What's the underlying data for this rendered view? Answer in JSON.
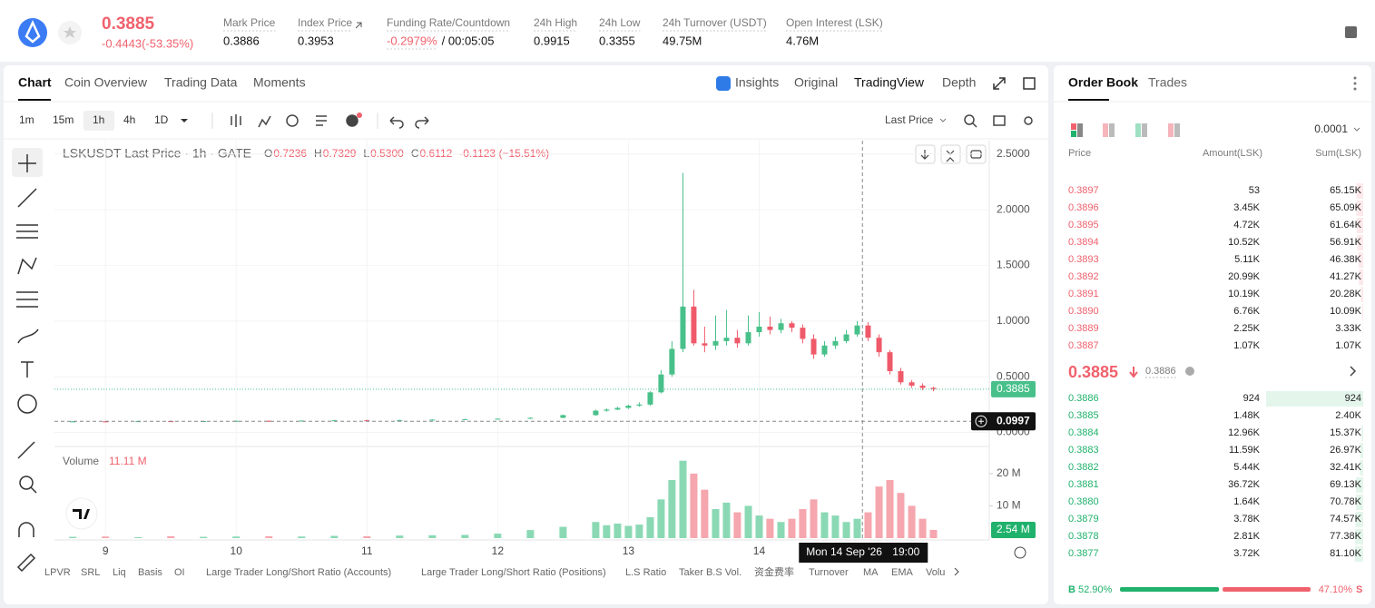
{
  "header": {
    "price": "0.3885",
    "change": "-0.4443(-53.35%)",
    "stats": [
      {
        "label": "Mark Price",
        "value": "0.3886"
      },
      {
        "label": "Index Price",
        "value": "0.3953"
      },
      {
        "label": "Funding Rate/Countdown",
        "value": "-0.2979%",
        "countdown": "/ 00:05:05"
      },
      {
        "label": "24h High",
        "value": "0.9915"
      },
      {
        "label": "24h Low",
        "value": "0.3355"
      },
      {
        "label": "24h Turnover (USDT)",
        "value": "49.75M"
      },
      {
        "label": "Open Interest (LSK)",
        "value": "4.76M"
      }
    ]
  },
  "tabs": [
    "Chart",
    "Coin Overview",
    "Trading Data",
    "Moments"
  ],
  "view_tabs": [
    "Insights",
    "Original",
    "TradingView",
    "Depth"
  ],
  "intervals": [
    "1m",
    "15m",
    "1h",
    "4h",
    "1D"
  ],
  "price_type": "Last Price",
  "chart_data": {
    "type": "candlestick",
    "title": "LSKUSDT Last Price · 1h · GATE",
    "legend": [
      {
        "label": "O",
        "value": "0.7236"
      },
      {
        "label": "H",
        "value": "0.7329"
      },
      {
        "label": "L",
        "value": "0.5300"
      },
      {
        "label": "C",
        "value": "0.6112"
      }
    ],
    "legend_change": "-0.1123 (−15.51%)",
    "x": [
      8.75,
      9,
      9.25,
      9.5,
      9.75,
      10,
      10.25,
      10.5,
      10.75,
      11,
      11.25,
      11.5,
      11.75,
      12,
      12.25,
      12.5,
      12.75,
      12.833,
      12.917,
      13,
      13.083,
      13.167,
      13.25,
      13.333,
      13.417,
      13.5,
      13.583,
      13.667,
      13.75,
      13.833,
      13.917,
      14,
      14.083,
      14.167,
      14.25,
      14.333,
      14.417,
      14.5,
      14.583,
      14.667,
      14.75,
      14.833,
      14.917,
      15,
      15.083,
      15.167,
      15.25,
      15.333
    ],
    "open": [
      0.097,
      0.099,
      0.098,
      0.101,
      0.1,
      0.102,
      0.104,
      0.103,
      0.106,
      0.109,
      0.107,
      0.111,
      0.115,
      0.119,
      0.123,
      0.131,
      0.155,
      0.195,
      0.205,
      0.22,
      0.24,
      0.25,
      0.36,
      0.52,
      0.75,
      1.13,
      0.8,
      0.78,
      0.82,
      0.85,
      0.8,
      0.9,
      0.95,
      0.92,
      0.98,
      0.94,
      0.84,
      0.7,
      0.78,
      0.82,
      0.88,
      0.96,
      0.85,
      0.72,
      0.55,
      0.45,
      0.42,
      0.4
    ],
    "high": [
      0.102,
      0.104,
      0.103,
      0.106,
      0.104,
      0.107,
      0.108,
      0.109,
      0.112,
      0.114,
      0.113,
      0.118,
      0.121,
      0.126,
      0.135,
      0.16,
      0.205,
      0.215,
      0.23,
      0.25,
      0.27,
      0.37,
      0.56,
      0.82,
      2.33,
      1.28,
      0.95,
      1.05,
      1.1,
      0.92,
      1.05,
      1.08,
      1.04,
      1.02,
      1.0,
      0.97,
      0.88,
      0.82,
      0.86,
      0.92,
      1.0,
      0.99,
      0.88,
      0.74,
      0.58,
      0.47,
      0.44,
      0.41
    ],
    "low": [
      0.094,
      0.095,
      0.096,
      0.098,
      0.097,
      0.099,
      0.1,
      0.101,
      0.103,
      0.105,
      0.104,
      0.108,
      0.111,
      0.115,
      0.12,
      0.128,
      0.15,
      0.185,
      0.2,
      0.21,
      0.23,
      0.24,
      0.35,
      0.5,
      0.72,
      0.78,
      0.72,
      0.74,
      0.78,
      0.76,
      0.78,
      0.86,
      0.88,
      0.89,
      0.9,
      0.8,
      0.66,
      0.68,
      0.75,
      0.8,
      0.86,
      0.82,
      0.68,
      0.52,
      0.43,
      0.4,
      0.38,
      0.37
    ],
    "close": [
      0.099,
      0.098,
      0.101,
      0.1,
      0.102,
      0.104,
      0.103,
      0.106,
      0.109,
      0.107,
      0.111,
      0.115,
      0.119,
      0.123,
      0.131,
      0.155,
      0.195,
      0.205,
      0.22,
      0.24,
      0.25,
      0.36,
      0.52,
      0.75,
      1.13,
      0.8,
      0.78,
      0.82,
      0.85,
      0.8,
      0.9,
      0.95,
      0.92,
      0.98,
      0.94,
      0.84,
      0.7,
      0.78,
      0.82,
      0.88,
      0.96,
      0.85,
      0.72,
      0.55,
      0.45,
      0.42,
      0.4,
      0.3885
    ],
    "volume": [
      0.4,
      0.5,
      0.3,
      0.6,
      0.4,
      0.5,
      0.6,
      0.5,
      0.7,
      0.6,
      0.8,
      0.9,
      1.0,
      1.4,
      2.5,
      3.5,
      5.0,
      4.0,
      4.5,
      3.8,
      4.2,
      6.5,
      12,
      18,
      24,
      20,
      15,
      9,
      11,
      8,
      10,
      7,
      6,
      5,
      6,
      9,
      12,
      8,
      7,
      5,
      6,
      8,
      16,
      18,
      14,
      10,
      6,
      2.54
    ],
    "up_color": "#48c08a",
    "down_color": "#ef5a6a",
    "vol_up_color": "#8ad9b4",
    "vol_down_color": "#f5a6ae",
    "xlim": [
      8.61,
      15.76
    ],
    "xticks": [
      9,
      10,
      11,
      12,
      13,
      14
    ],
    "ylim": [
      -0.11,
      2.62
    ],
    "yticks": [
      {
        "value": 0,
        "label": "0.0000"
      },
      {
        "value": 0.5,
        "label": "0.5000"
      },
      {
        "value": 1,
        "label": "1.0000"
      },
      {
        "value": 1.5,
        "label": "1.5000"
      },
      {
        "value": 2,
        "label": "2.0000"
      },
      {
        "value": 2.5,
        "label": "2.5000"
      }
    ],
    "volume_title": "Volume",
    "volume_value": "11.11 M",
    "volume_ylim": [
      0,
      27
    ],
    "volume_ticks": [
      {
        "value": 10,
        "label": "10 M"
      },
      {
        "value": 20,
        "label": "20 M"
      }
    ],
    "last_price": {
      "value": 0.3885,
      "label": "0.3885"
    },
    "last_volume": {
      "value": 2.54,
      "label": "2.54 M"
    },
    "crosshair": {
      "x": 14.79,
      "y": 0.0997,
      "y_label": "0.0997",
      "date_label": "Mon 14 Sep '26",
      "time_label": "19:00"
    }
  },
  "indicators": [
    "LPVR",
    "SRL",
    "Liq",
    "Basis",
    "OI",
    "Large Trader Long/Short Ratio (Accounts)",
    "Large Trader Long/Short Ratio (Positions)",
    "L.S Ratio",
    "Taker B.S Vol.",
    "资金费率",
    "Turnover",
    "MA",
    "EMA",
    "Volu"
  ],
  "order_book": {
    "tabs": [
      "Order Book",
      "Trades"
    ],
    "precision": "0.0001",
    "columns": [
      "Price",
      "Amount(LSK)",
      "Sum(LSK)"
    ],
    "asks": [
      [
        "0.3897",
        "53",
        "65.15K"
      ],
      [
        "0.3896",
        "3.45K",
        "65.09K"
      ],
      [
        "0.3895",
        "4.72K",
        "61.64K"
      ],
      [
        "0.3894",
        "10.52K",
        "56.91K"
      ],
      [
        "0.3893",
        "5.11K",
        "46.38K"
      ],
      [
        "0.3892",
        "20.99K",
        "41.27K"
      ],
      [
        "0.3891",
        "10.19K",
        "20.28K"
      ],
      [
        "0.3890",
        "6.76K",
        "10.09K"
      ],
      [
        "0.3889",
        "2.25K",
        "3.33K"
      ],
      [
        "0.3887",
        "1.07K",
        "1.07K"
      ]
    ],
    "last": "0.3885",
    "mark": "0.3886",
    "bids": [
      [
        "0.3886",
        "924",
        "924"
      ],
      [
        "0.3885",
        "1.48K",
        "2.40K"
      ],
      [
        "0.3884",
        "12.96K",
        "15.37K"
      ],
      [
        "0.3883",
        "11.59K",
        "26.97K"
      ],
      [
        "0.3882",
        "5.44K",
        "32.41K"
      ],
      [
        "0.3881",
        "36.72K",
        "69.13K"
      ],
      [
        "0.3880",
        "1.64K",
        "70.78K"
      ],
      [
        "0.3879",
        "3.78K",
        "74.57K"
      ],
      [
        "0.3878",
        "2.81K",
        "77.38K"
      ],
      [
        "0.3877",
        "3.72K",
        "81.10K"
      ]
    ],
    "buy_letter": "B",
    "buy_ratio": 52.9,
    "buy_label": "52.90%",
    "sell_ratio": 47.1,
    "sell_label": "47.10%",
    "sell_letter": "S"
  }
}
